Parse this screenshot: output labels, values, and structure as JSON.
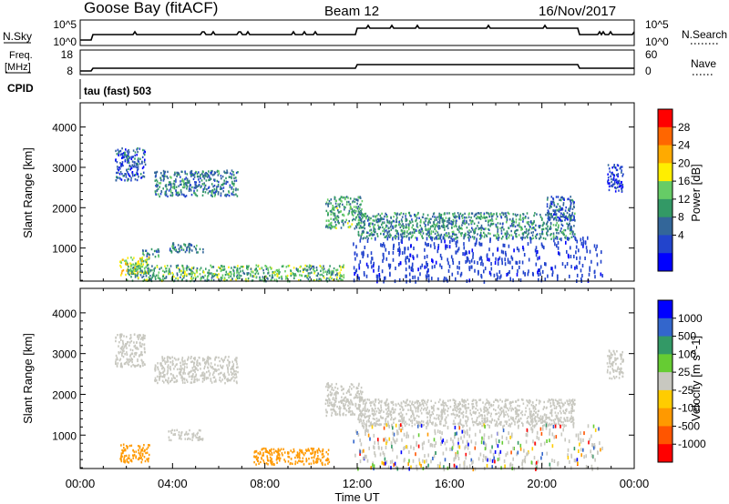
{
  "header": {
    "station": "Goose Bay (fitACF)",
    "beam": "Beam 12",
    "date": "16/Nov/2017"
  },
  "top_panels": {
    "nsky_label": "N.Sky",
    "nsearch_label": "N.Search",
    "noise_tick_high": "10^5",
    "noise_tick_low": "10^0",
    "freq_label": "Freq.",
    "freq_unit": "[MHz]",
    "freq_tick_high": "18",
    "freq_tick_low": "8",
    "nave_label": "Nave",
    "nave_tick_high": "60",
    "nave_tick_low": "0",
    "cpid_label": "CPID",
    "cpid_value": "tau (fast) 503"
  },
  "power_colorbar": {
    "label": "Power [dB]",
    "ticks": [
      "28",
      "24",
      "20",
      "16",
      "12",
      "8",
      "4"
    ],
    "colors": [
      "#ff0000",
      "#ff6600",
      "#ffaa00",
      "#ffee00",
      "#66cc66",
      "#339966",
      "#336699",
      "#2244cc",
      "#0000ff"
    ]
  },
  "velocity_colorbar": {
    "label": "Velocity [m s^-1]",
    "ticks": [
      "1000",
      "500",
      "100",
      "25",
      "-25",
      "-100",
      "-500",
      "-1000"
    ],
    "colors": [
      "#0000ff",
      "#3366cc",
      "#339966",
      "#66cc33",
      "#c8c8c0",
      "#ffcc00",
      "#ff9900",
      "#ff5500",
      "#ff0000"
    ]
  },
  "chart_data": [
    {
      "type": "heatmap",
      "title": "Power",
      "xlabel": "",
      "ylabel": "Slant Range [km]",
      "x_ticks": [
        "00:00",
        "04:00",
        "08:00",
        "12:00",
        "16:00",
        "20:00",
        "00:00"
      ],
      "y_ticks": [
        "1000",
        "2000",
        "3000",
        "4000"
      ],
      "xlim_hours": [
        0,
        24
      ],
      "ylim_km": [
        180,
        4600
      ],
      "colorbar_range_db": [
        0,
        32
      ],
      "echo_regions": [
        {
          "t0": 1.5,
          "t1": 2.8,
          "r0": 2700,
          "r1": 3500,
          "db": 7
        },
        {
          "t0": 3.2,
          "t1": 6.8,
          "r0": 2300,
          "r1": 2950,
          "db": 10
        },
        {
          "t0": 1.7,
          "t1": 3.0,
          "r0": 350,
          "r1": 800,
          "db": 18
        },
        {
          "t0": 2.6,
          "t1": 3.4,
          "r0": 800,
          "r1": 1000,
          "db": 10
        },
        {
          "t0": 3.8,
          "t1": 5.3,
          "r0": 900,
          "r1": 1150,
          "db": 10
        },
        {
          "t0": 2.0,
          "t1": 11.4,
          "r0": 200,
          "r1": 600,
          "db": 14
        },
        {
          "t0": 10.6,
          "t1": 12.2,
          "r0": 1500,
          "r1": 2300,
          "db": 13
        },
        {
          "t0": 12.0,
          "t1": 21.4,
          "r0": 1250,
          "r1": 1900,
          "db": 11
        },
        {
          "t0": 11.8,
          "t1": 22.6,
          "r0": 200,
          "r1": 1300,
          "db": 5
        },
        {
          "t0": 20.2,
          "t1": 21.4,
          "r0": 1700,
          "r1": 2300,
          "db": 7
        },
        {
          "t0": 22.8,
          "t1": 23.5,
          "r0": 2400,
          "r1": 3100,
          "db": 6
        }
      ]
    },
    {
      "type": "heatmap",
      "title": "Velocity",
      "xlabel": "Time UT",
      "ylabel": "Slant Range [km]",
      "x_ticks": [
        "00:00",
        "04:00",
        "08:00",
        "12:00",
        "16:00",
        "20:00",
        "00:00"
      ],
      "y_ticks": [
        "1000",
        "2000",
        "3000",
        "4000"
      ],
      "xlim_hours": [
        0,
        24
      ],
      "ylim_km": [
        180,
        4600
      ],
      "colorbar_range_ms": [
        -1000,
        1000
      ],
      "echo_regions": [
        {
          "t0": 1.5,
          "t1": 2.8,
          "r0": 2700,
          "r1": 3500,
          "v": 0
        },
        {
          "t0": 3.2,
          "t1": 6.8,
          "r0": 2300,
          "r1": 2950,
          "v": 0
        },
        {
          "t0": 1.7,
          "t1": 3.0,
          "r0": 350,
          "r1": 800,
          "v": -300
        },
        {
          "t0": 3.8,
          "t1": 5.3,
          "r0": 900,
          "r1": 1150,
          "v": 0
        },
        {
          "t0": 7.5,
          "t1": 10.8,
          "r0": 300,
          "r1": 700,
          "v": -150
        },
        {
          "t0": 10.6,
          "t1": 12.2,
          "r0": 1500,
          "r1": 2300,
          "v": 0
        },
        {
          "t0": 12.0,
          "t1": 21.4,
          "r0": 1250,
          "r1": 1900,
          "v": 0
        },
        {
          "t0": 11.8,
          "t1": 22.6,
          "r0": 200,
          "r1": 1300,
          "v": "mixed"
        },
        {
          "t0": 22.8,
          "t1": 23.5,
          "r0": 2400,
          "r1": 3100,
          "v": 0
        }
      ]
    }
  ]
}
